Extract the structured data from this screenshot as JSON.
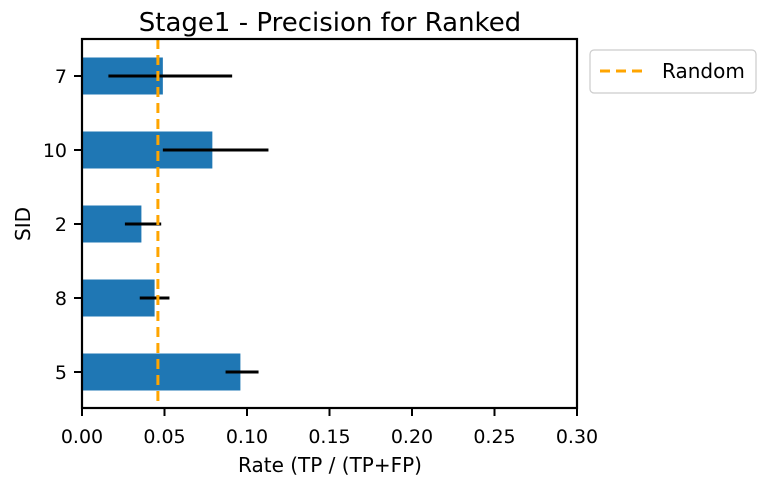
{
  "chart_data": {
    "type": "bar",
    "orientation": "horizontal",
    "title": "Stage1 - Precision for Ranked",
    "xlabel": "Rate (TP / (TP+FP)",
    "ylabel": "SID",
    "xlim": [
      0.0,
      0.3
    ],
    "x_ticks": [
      "0.00",
      "0.05",
      "0.10",
      "0.15",
      "0.20",
      "0.25",
      "0.30"
    ],
    "categories": [
      "7",
      "10",
      "2",
      "8",
      "5"
    ],
    "values": [
      0.049,
      0.079,
      0.036,
      0.044,
      0.096
    ],
    "error_low": [
      0.016,
      0.049,
      0.026,
      0.035,
      0.087
    ],
    "error_high": [
      0.091,
      0.113,
      0.048,
      0.053,
      0.107
    ],
    "reference_line": {
      "name": "Random",
      "x": 0.046,
      "style": "dashed"
    },
    "legend": {
      "entries": [
        "Random"
      ],
      "placement": "outside-top-right"
    },
    "grid": false,
    "colors": {
      "bar": "#1f77b4",
      "error": "#000000",
      "reference": "#ffa500"
    }
  }
}
